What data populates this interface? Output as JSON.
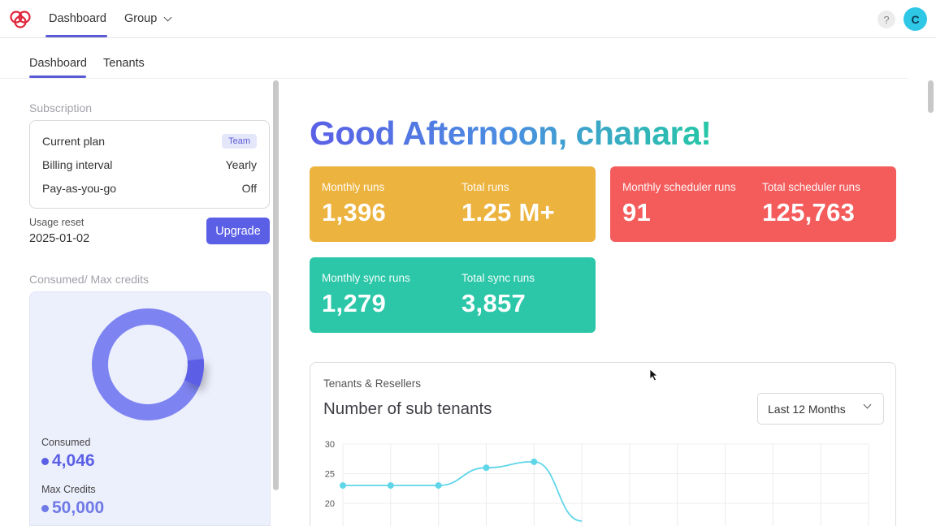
{
  "topbar": {
    "nav": [
      {
        "label": "Dashboard"
      },
      {
        "label": "Group"
      }
    ],
    "help_label": "?",
    "avatar_initial": "C",
    "accent": "#5b5bd6"
  },
  "subtabs": [
    {
      "label": "Dashboard"
    },
    {
      "label": "Tenants"
    }
  ],
  "subscription": {
    "title": "Subscription",
    "rows": [
      {
        "label": "Current plan",
        "value": "Team"
      },
      {
        "label": "Billing interval",
        "value": "Yearly"
      },
      {
        "label": "Pay-as-you-go",
        "value": "Off"
      }
    ],
    "usage_reset_label": "Usage reset",
    "usage_reset_value": "2025-01-02",
    "upgrade_label": "Upgrade"
  },
  "credits": {
    "title": "Consumed/ Max credits",
    "consumed_label": "Consumed",
    "consumed_value": "4,046",
    "max_label": "Max Credits",
    "max_value": "50,000",
    "consumed_fraction": 0.0809
  },
  "greeting": "Good Afternoon, chanara!",
  "stats": {
    "yellow": [
      {
        "label": "Monthly runs",
        "value": "1,396"
      },
      {
        "label": "Total runs",
        "value": "1.25 M+"
      }
    ],
    "red": [
      {
        "label": "Monthly scheduler runs",
        "value": "91"
      },
      {
        "label": "Total scheduler runs",
        "value": "125,763"
      }
    ],
    "green": [
      {
        "label": "Monthly sync runs",
        "value": "1,279"
      },
      {
        "label": "Total sync runs",
        "value": "3,857"
      }
    ],
    "colors": {
      "yellow": "#ecb33e",
      "red": "#f45c5c",
      "green": "#2bc7a8"
    }
  },
  "chart_card": {
    "kicker": "Tenants & Resellers",
    "title": "Number of sub tenants",
    "period": "Last 12 Months"
  },
  "chart_data": {
    "type": "line",
    "y_ticks": [
      "30",
      "25",
      "20"
    ],
    "ylim": [
      20,
      30
    ],
    "x_count": 12,
    "points": [
      {
        "i": 0,
        "y": 23
      },
      {
        "i": 1,
        "y": 23
      },
      {
        "i": 2,
        "y": 23
      },
      {
        "i": 3,
        "y": 26
      },
      {
        "i": 4,
        "y": 27
      },
      {
        "i": 5,
        "y": 17
      }
    ],
    "line_color": "#5fd6e8",
    "grid": true
  }
}
